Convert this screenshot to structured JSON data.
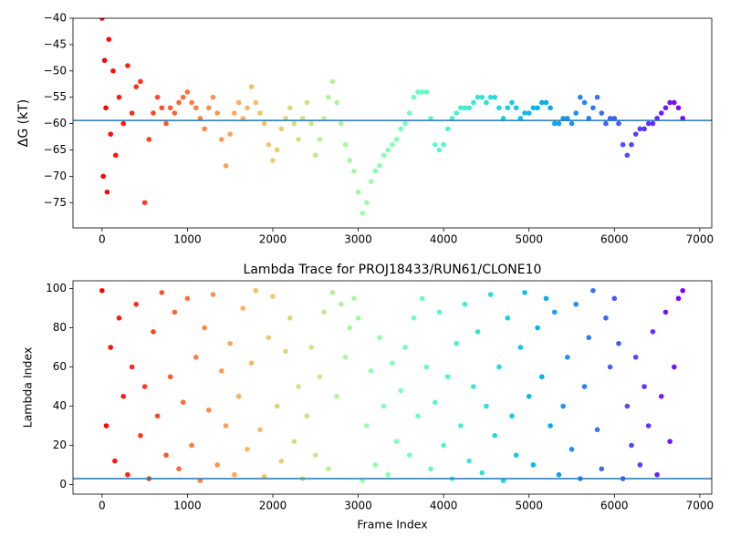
{
  "chart_data": [
    {
      "type": "scatter",
      "ylabel": "ΔG (kT)",
      "colormap": "rainbow_r",
      "hline": -59.4,
      "hline_color": "#1f77b4",
      "xlim": [
        -340,
        7140
      ],
      "ylim": [
        -79.8,
        -40
      ],
      "xticks": [
        0,
        1000,
        2000,
        3000,
        4000,
        5000,
        6000,
        7000
      ],
      "yticks": [
        {
          "value": -75,
          "label": "−75"
        },
        {
          "value": -70,
          "label": "−70"
        },
        {
          "value": -65,
          "label": "−65"
        },
        {
          "value": -60,
          "label": "−60"
        },
        {
          "value": -55,
          "label": "−55"
        },
        {
          "value": -50,
          "label": "−50"
        },
        {
          "value": -45,
          "label": "−45"
        },
        {
          "value": -40,
          "label": "−40"
        }
      ],
      "x": [
        0,
        15,
        30,
        45,
        60,
        80,
        100,
        130,
        160,
        200,
        250,
        300,
        350,
        400,
        450,
        500,
        550,
        600,
        650,
        700,
        750,
        800,
        850,
        900,
        950,
        1000,
        1050,
        1100,
        1150,
        1200,
        1250,
        1300,
        1350,
        1400,
        1450,
        1500,
        1550,
        1600,
        1650,
        1700,
        1750,
        1800,
        1850,
        1900,
        1950,
        2000,
        2050,
        2100,
        2150,
        2200,
        2250,
        2300,
        2350,
        2400,
        2450,
        2500,
        2550,
        2600,
        2650,
        2700,
        2750,
        2800,
        2850,
        2900,
        2950,
        3000,
        3050,
        3100,
        3150,
        3200,
        3250,
        3300,
        3350,
        3400,
        3450,
        3500,
        3550,
        3600,
        3650,
        3700,
        3750,
        3800,
        3850,
        3900,
        3950,
        4000,
        4050,
        4100,
        4150,
        4200,
        4250,
        4300,
        4350,
        4400,
        4450,
        4500,
        4550,
        4600,
        4650,
        4700,
        4750,
        4800,
        4850,
        4900,
        4950,
        5000,
        5050,
        5100,
        5150,
        5200,
        5250,
        5300,
        5350,
        5400,
        5450,
        5500,
        5550,
        5600,
        5650,
        5700,
        5750,
        5800,
        5850,
        5900,
        5950,
        6000,
        6050,
        6100,
        6150,
        6200,
        6250,
        6300,
        6350,
        6400,
        6450,
        6500,
        6550,
        6600,
        6650,
        6700,
        6750,
        6800
      ],
      "values": [
        -40,
        -70,
        -48,
        -57,
        -73,
        -44,
        -62,
        -50,
        -66,
        -55,
        -60,
        -49,
        -58,
        -53,
        -52,
        -75,
        -63,
        -58,
        -55,
        -57,
        -60,
        -57,
        -58,
        -56,
        -55,
        -54,
        -56,
        -57,
        -59,
        -61,
        -57,
        -55,
        -58,
        -63,
        -68,
        -62,
        -58,
        -56,
        -59,
        -57,
        -53,
        -56,
        -58,
        -60,
        -64,
        -67,
        -65,
        -61,
        -59,
        -57,
        -60,
        -63,
        -59,
        -56,
        -60,
        -66,
        -63,
        -59,
        -55,
        -52,
        -56,
        -60,
        -64,
        -67,
        -69,
        -73,
        -77,
        -75,
        -71,
        -69,
        -68,
        -66,
        -65,
        -64,
        -63,
        -61,
        -60,
        -58,
        -55,
        -54,
        -54,
        -54,
        -59,
        -64,
        -65,
        -64,
        -61,
        -59,
        -58,
        -57,
        -57,
        -57,
        -56,
        -55,
        -55,
        -56,
        -55,
        -55,
        -57,
        -59,
        -57,
        -56,
        -57,
        -59,
        -58,
        -58,
        -57,
        -57,
        -56,
        -56,
        -57,
        -60,
        -60,
        -59,
        -59,
        -60,
        -58,
        -55,
        -56,
        -59,
        -57,
        -55,
        -58,
        -60,
        -59,
        -59,
        -60,
        -64,
        -66,
        -64,
        -62,
        -61,
        -61,
        -60,
        -60,
        -59,
        -58,
        -57,
        -56,
        -56,
        -57,
        -59
      ]
    },
    {
      "type": "scatter",
      "title": "Lambda Trace for PROJ18433/RUN61/CLONE10",
      "xlabel": "Frame Index",
      "ylabel": "Lambda Index",
      "colormap": "rainbow_r",
      "hline": 3,
      "hline_color": "#1f77b4",
      "xlim": [
        -340,
        7140
      ],
      "ylim": [
        -4.9,
        104
      ],
      "xticks": [
        0,
        1000,
        2000,
        3000,
        4000,
        5000,
        6000,
        7000
      ],
      "yticks": [
        0,
        20,
        40,
        60,
        80,
        100
      ],
      "x": [
        0,
        50,
        100,
        150,
        200,
        250,
        300,
        350,
        400,
        450,
        500,
        550,
        600,
        650,
        700,
        750,
        800,
        850,
        900,
        950,
        1000,
        1050,
        1100,
        1150,
        1200,
        1250,
        1300,
        1350,
        1400,
        1450,
        1500,
        1550,
        1600,
        1650,
        1700,
        1750,
        1800,
        1850,
        1900,
        1950,
        2000,
        2050,
        2100,
        2150,
        2200,
        2250,
        2300,
        2350,
        2400,
        2450,
        2500,
        2550,
        2600,
        2650,
        2700,
        2750,
        2800,
        2850,
        2900,
        2950,
        3000,
        3050,
        3100,
        3150,
        3200,
        3250,
        3300,
        3350,
        3400,
        3450,
        3500,
        3550,
        3600,
        3650,
        3700,
        3750,
        3800,
        3850,
        3900,
        3950,
        4000,
        4050,
        4100,
        4150,
        4200,
        4250,
        4300,
        4350,
        4400,
        4450,
        4500,
        4550,
        4600,
        4650,
        4700,
        4750,
        4800,
        4850,
        4900,
        4950,
        5000,
        5050,
        5100,
        5150,
        5200,
        5250,
        5300,
        5350,
        5400,
        5450,
        5500,
        5550,
        5600,
        5650,
        5700,
        5750,
        5800,
        5850,
        5900,
        5950,
        6000,
        6050,
        6100,
        6150,
        6200,
        6250,
        6300,
        6350,
        6400,
        6450,
        6500,
        6550,
        6600,
        6650,
        6700,
        6750,
        6800
      ],
      "values": [
        99,
        30,
        70,
        12,
        85,
        45,
        5,
        60,
        92,
        25,
        50,
        3,
        78,
        35,
        98,
        15,
        55,
        88,
        8,
        42,
        95,
        20,
        65,
        2,
        80,
        38,
        97,
        10,
        58,
        30,
        72,
        5,
        45,
        90,
        18,
        62,
        99,
        28,
        4,
        75,
        96,
        40,
        12,
        68,
        85,
        22,
        50,
        3,
        35,
        70,
        15,
        55,
        88,
        8,
        98,
        45,
        92,
        65,
        80,
        95,
        85,
        2,
        30,
        58,
        10,
        75,
        40,
        5,
        62,
        22,
        48,
        70,
        15,
        85,
        35,
        95,
        60,
        8,
        42,
        88,
        20,
        55,
        3,
        72,
        30,
        92,
        12,
        50,
        78,
        6,
        40,
        97,
        25,
        60,
        2,
        85,
        35,
        15,
        70,
        98,
        45,
        10,
        80,
        55,
        95,
        30,
        88,
        5,
        40,
        65,
        18,
        92,
        3,
        50,
        75,
        99,
        28,
        8,
        85,
        60,
        95,
        72,
        3,
        40,
        20,
        65,
        10,
        50,
        30,
        78,
        5,
        45,
        88,
        22,
        60,
        95,
        99
      ]
    }
  ]
}
